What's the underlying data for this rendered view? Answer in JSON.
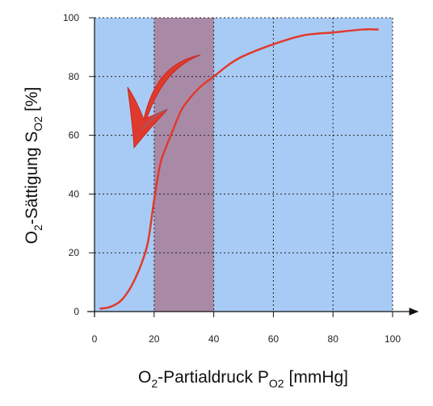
{
  "chart_data": {
    "type": "line",
    "title": "",
    "xlabel": {
      "main": "O",
      "sub1": "2",
      "mid": "-Partialdruck P",
      "sub2": "O2",
      "unit": "[mmHg]"
    },
    "ylabel": {
      "main": "O",
      "sub1": "2",
      "mid": "-Sättigung S",
      "sub2": "O2",
      "unit": "[%]"
    },
    "xlim": [
      0,
      100
    ],
    "ylim": [
      0,
      100
    ],
    "x_ticks": [
      "0",
      "20",
      "40",
      "60",
      "80",
      "100"
    ],
    "y_ticks": [
      "0",
      "20",
      "40",
      "60",
      "80",
      "100"
    ],
    "grid": true,
    "highlight_region": {
      "x_from": 20,
      "x_to": 40,
      "color": "#a98aa6"
    },
    "plot_background": "#a8cbf5",
    "series": [
      {
        "color": "#e03a2e",
        "x": [
          2,
          5,
          8,
          10,
          12,
          14,
          16,
          18,
          20,
          22,
          24,
          26,
          28,
          30,
          35,
          40,
          45,
          50,
          60,
          70,
          80,
          90,
          95
        ],
        "y": [
          1,
          1.5,
          3,
          5,
          8,
          12,
          17,
          24,
          38,
          50,
          56,
          61,
          66,
          70,
          76,
          80,
          84,
          87,
          91,
          94,
          95,
          96,
          96
        ]
      }
    ]
  }
}
